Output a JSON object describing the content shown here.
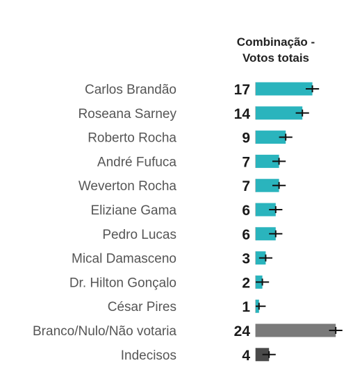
{
  "chart_data": {
    "type": "bar",
    "orientation": "horizontal",
    "title": "Combinação - Votos totais",
    "title_lines": [
      "Combinação -",
      "Votos totais"
    ],
    "categories": [
      "Carlos Brandão",
      "Roseana Sarney",
      "Roberto Rocha",
      "André Fufuca",
      "Weverton Rocha",
      "Eliziane Gama",
      "Pedro Lucas",
      "Mical Damasceno",
      "Dr. Hilton Gonçalo",
      "César Pires",
      "Branco/Nulo/Não votaria",
      "Indecisos"
    ],
    "values": [
      17,
      14,
      9,
      7,
      7,
      6,
      6,
      3,
      2,
      1,
      24,
      4
    ],
    "value_labels": [
      "17",
      "14",
      "9",
      "7",
      "7",
      "6",
      "6",
      "3",
      "2",
      "1",
      "24",
      "4"
    ],
    "error_margin": 2,
    "bar_colors": [
      "#2ab4bd",
      "#2ab4bd",
      "#2ab4bd",
      "#2ab4bd",
      "#2ab4bd",
      "#2ab4bd",
      "#2ab4bd",
      "#2ab4bd",
      "#2ab4bd",
      "#2ab4bd",
      "#7a7a7a",
      "#4a4a4a"
    ],
    "error_bar_color": "#111111",
    "xlim": [
      0,
      28
    ],
    "grid": false,
    "legend": "none"
  }
}
